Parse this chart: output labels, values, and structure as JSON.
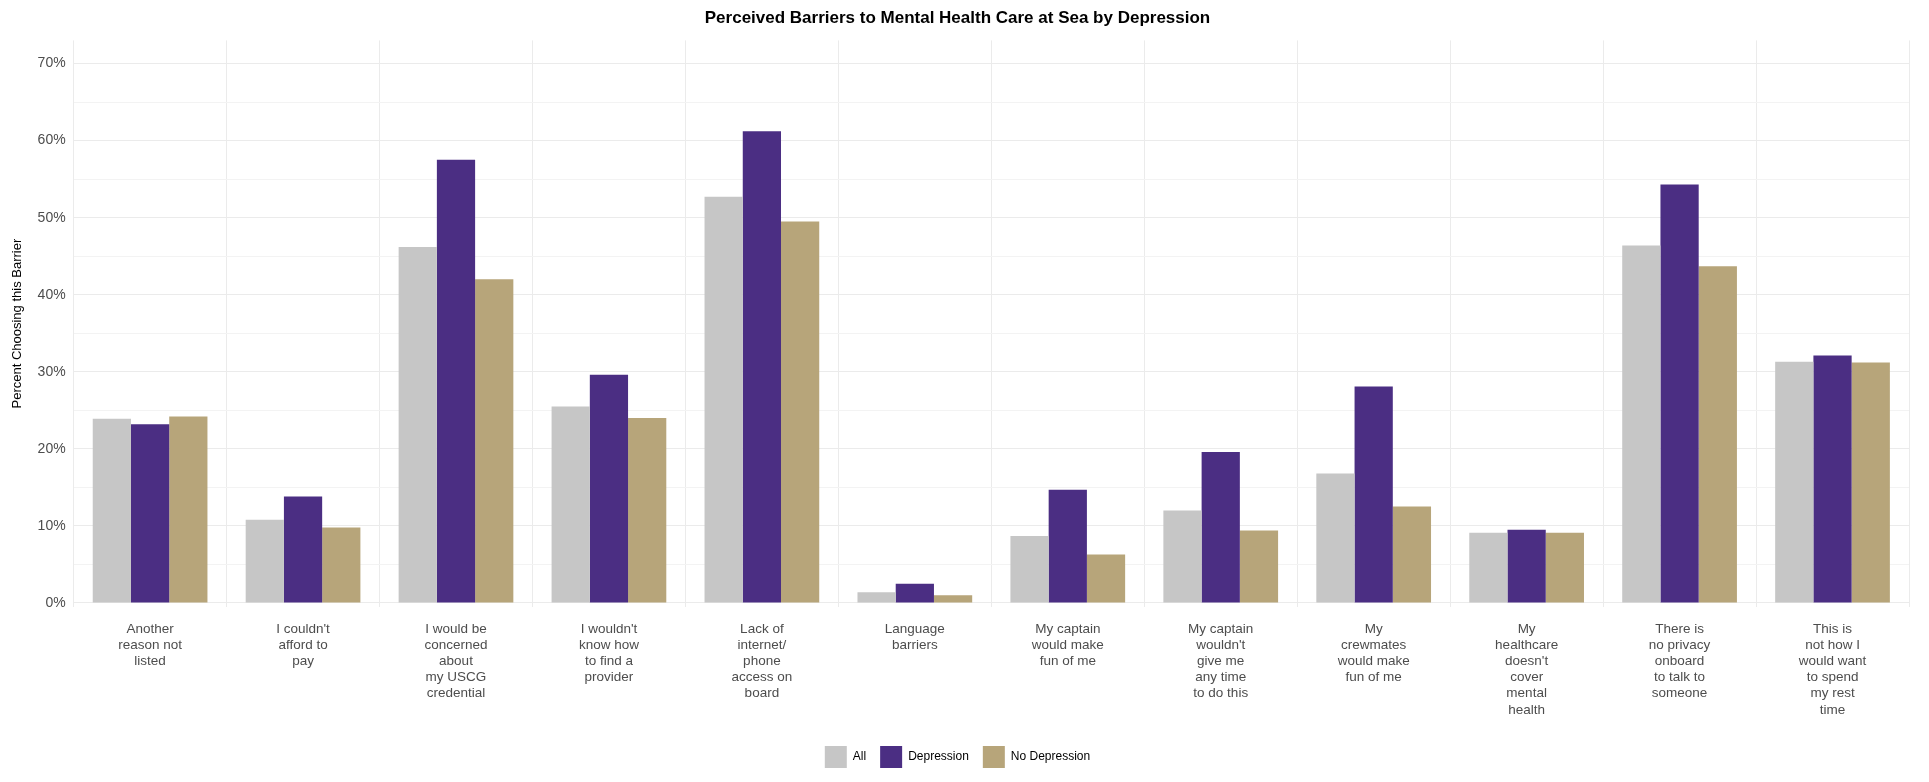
{
  "chart_data": {
    "type": "bar",
    "title": "Perceived Barriers to Mental Health Care at Sea by Depression",
    "ylabel": "Percent Choosing this Barrier",
    "categories": [
      "Another\nreason not\nlisted",
      "I couldn't\nafford to\npay",
      "I would be\nconcerned\nabout\nmy USCG\ncredential",
      "I wouldn't\nknow how\nto find a\nprovider",
      "Lack of\ninternet/\nphone\naccess on\nboard",
      "Language\nbarriers",
      "My captain\nwould make\nfun of me",
      "My captain\nwouldn't\ngive me\nany time\nto do this",
      "My\ncrewmates\nwould make\nfun of me",
      "My\nhealthcare\ndoesn't\ncover\nmental\nhealth",
      "There is\nno privacy\nonboard\nto talk to\nsomeone",
      "This is\nnot how I\nwould want\nto spend\nmy rest\ntime"
    ],
    "series": [
      {
        "name": "All",
        "color": "#c6c6c6",
        "values": [
          23.9,
          10.8,
          46.2,
          25.5,
          52.7,
          1.4,
          8.7,
          12.0,
          16.8,
          9.1,
          46.4,
          31.3
        ]
      },
      {
        "name": "Depression",
        "color": "#4b2e83",
        "values": [
          23.2,
          13.8,
          57.5,
          29.6,
          61.2,
          2.5,
          14.7,
          19.6,
          28.1,
          9.5,
          54.3,
          32.1
        ]
      },
      {
        "name": "No Depression",
        "color": "#b7a57a",
        "values": [
          24.2,
          9.8,
          42.0,
          24.0,
          49.5,
          1.0,
          6.3,
          9.4,
          12.5,
          9.1,
          43.7,
          31.2
        ]
      }
    ],
    "ylim": [
      -0.5,
      73
    ],
    "yticks": [
      {
        "value": 0,
        "label": "0%"
      },
      {
        "value": 5,
        "label": null
      },
      {
        "value": 10,
        "label": "10%"
      },
      {
        "value": 15,
        "label": null
      },
      {
        "value": 20,
        "label": "20%"
      },
      {
        "value": 25,
        "label": null
      },
      {
        "value": 30,
        "label": "30%"
      },
      {
        "value": 35,
        "label": null
      },
      {
        "value": 40,
        "label": "40%"
      },
      {
        "value": 45,
        "label": null
      },
      {
        "value": 50,
        "label": "50%"
      },
      {
        "value": 55,
        "label": null
      },
      {
        "value": 60,
        "label": "60%"
      },
      {
        "value": 65,
        "label": null
      },
      {
        "value": 70,
        "label": "70%"
      }
    ],
    "grid": true,
    "legend": "bottom"
  }
}
